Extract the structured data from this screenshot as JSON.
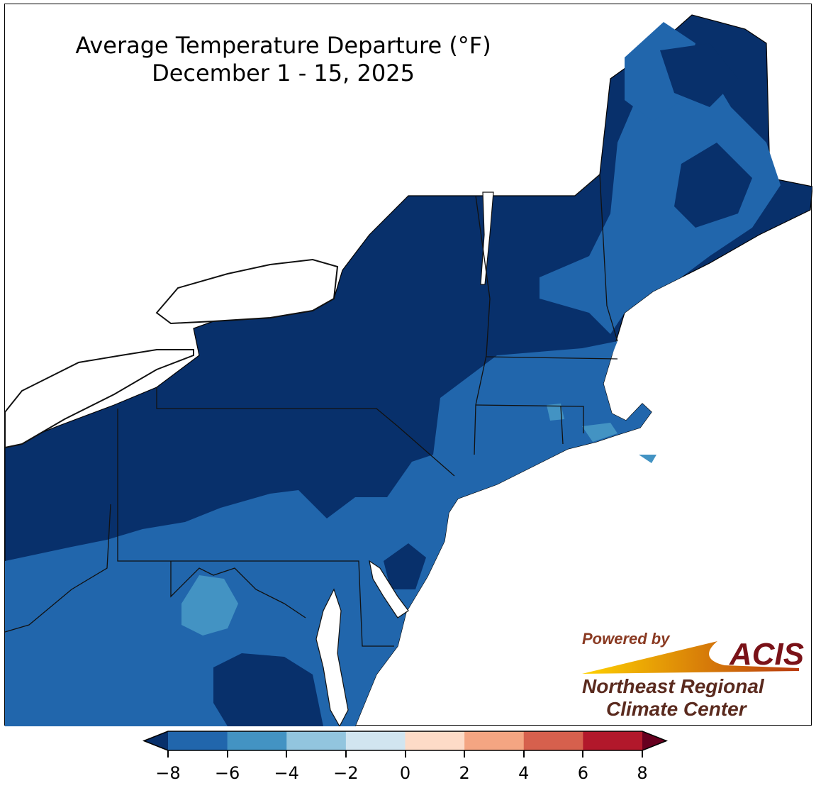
{
  "title": {
    "line1": "Average Temperature Departure (°F)",
    "line2": "December 1 - 15, 2025"
  },
  "logo": {
    "powered_by": "Powered by",
    "acis": "ACIS",
    "line1": "Northeast Regional",
    "line2": "Climate Center"
  },
  "colors": {
    "below_min": "#08306b",
    "ocean_lake": "#ffffff",
    "above_max": "#67001f"
  },
  "colorbar": {
    "unit": "°F",
    "ticks": [
      "−8",
      "−6",
      "−4",
      "−2",
      "0",
      "2",
      "4",
      "6",
      "8"
    ],
    "bins": [
      {
        "range": [
          -8,
          -6
        ],
        "color": "#2166ac"
      },
      {
        "range": [
          -6,
          -4
        ],
        "color": "#4393c3"
      },
      {
        "range": [
          -4,
          -2
        ],
        "color": "#92c5de"
      },
      {
        "range": [
          -2,
          0
        ],
        "color": "#d1e5f0"
      },
      {
        "range": [
          0,
          2
        ],
        "color": "#fddbc7"
      },
      {
        "range": [
          2,
          4
        ],
        "color": "#f4a582"
      },
      {
        "range": [
          4,
          6
        ],
        "color": "#d6604d"
      },
      {
        "range": [
          6,
          8
        ],
        "color": "#b2182b"
      }
    ],
    "extend_low_color": "#08306b",
    "extend_high_color": "#67001f"
  }
}
